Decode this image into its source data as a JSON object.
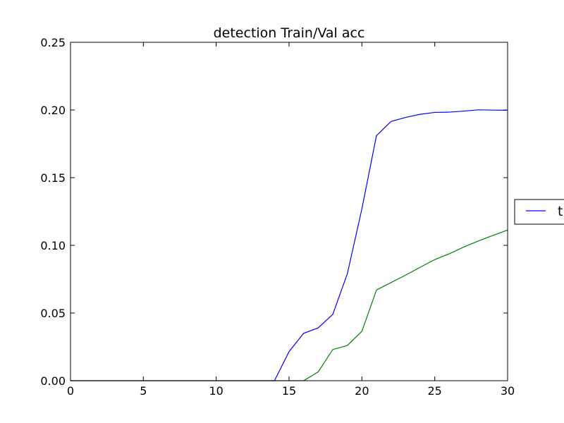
{
  "chart_data": {
    "type": "line",
    "title": "detection Train/Val acc",
    "xlabel": "",
    "ylabel": "",
    "xlim": [
      0,
      30
    ],
    "ylim": [
      0,
      0.25
    ],
    "x_ticks": [
      "0",
      "5",
      "10",
      "15",
      "20",
      "25",
      "30"
    ],
    "y_ticks": [
      "0.00",
      "0.05",
      "0.10",
      "0.15",
      "0.20",
      "0.25"
    ],
    "grid": false,
    "legend_placement": "right, outside plot, clipped",
    "legend_visible_text": "t",
    "series": [
      {
        "color": "#0000ff",
        "x": [
          0,
          1,
          2,
          3,
          4,
          5,
          6,
          7,
          8,
          9,
          10,
          11,
          12,
          13,
          14,
          15,
          16,
          17,
          18,
          19,
          20,
          21,
          22,
          23,
          24,
          25,
          26,
          27,
          28,
          29,
          30
        ],
        "values": [
          0,
          0,
          0,
          0,
          0,
          0,
          0,
          0,
          0,
          0,
          0,
          0,
          0,
          0,
          0,
          0.0215,
          0.035,
          0.039,
          0.049,
          0.079,
          0.127,
          0.181,
          0.1915,
          0.1945,
          0.1968,
          0.1982,
          0.1984,
          0.1992,
          0.2001,
          0.1999,
          0.1998
        ]
      },
      {
        "color": "#008000",
        "x": [
          0,
          1,
          2,
          3,
          4,
          5,
          6,
          7,
          8,
          9,
          10,
          11,
          12,
          13,
          14,
          15,
          16,
          17,
          18,
          19,
          20,
          21,
          22,
          23,
          24,
          25,
          26,
          27,
          28,
          29,
          30
        ],
        "values": [
          0,
          0,
          0,
          0,
          0,
          0,
          0,
          0,
          0,
          0,
          0,
          0,
          0,
          0,
          0,
          0,
          0,
          0.0065,
          0.023,
          0.026,
          0.0365,
          0.067,
          0.0725,
          0.078,
          0.0838,
          0.0895,
          0.0938,
          0.0988,
          0.1033,
          0.1073,
          0.1113
        ]
      }
    ]
  }
}
